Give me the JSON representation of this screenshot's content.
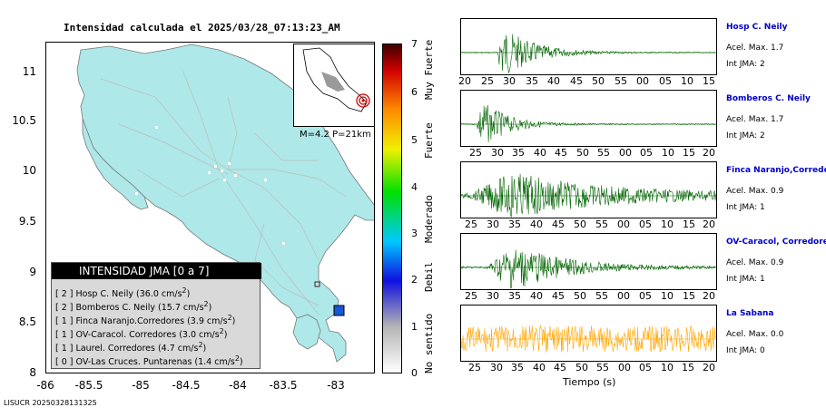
{
  "title": "Intensidad calculada el 2025/03/28_07:13:23_AM",
  "map": {
    "y_ticks": [
      "11",
      "10.5",
      "10",
      "9.5",
      "9",
      "8.5",
      "8"
    ],
    "x_ticks": [
      "-86",
      "-85.5",
      "-85",
      "-84.5",
      "-84",
      "-83.5",
      "-83"
    ],
    "land_color": "#aee8e8",
    "station_marker_color": "#1a55d8",
    "inset_label": "M=4.2 P=21km"
  },
  "legend": {
    "title": "INTENSIDAD JMA [0 a 7]",
    "rows": [
      {
        "level": "[ 2 ]",
        "text": "Hosp C. Neily (36.0 cm/s",
        "sup": "2",
        "close": ")"
      },
      {
        "level": "[ 2 ]",
        "text": "Bomberos C. Neily (15.7 cm/s",
        "sup": "2",
        "close": ")"
      },
      {
        "level": "[ 1 ]",
        "text": "Finca Naranjo.Corredores (3.9 cm/s",
        "sup": "2",
        "close": ")"
      },
      {
        "level": "[ 1 ]",
        "text": "OV-Caracol. Corredores (3.0 cm/s",
        "sup": "2",
        "close": ")"
      },
      {
        "level": "[ 1 ]",
        "text": "Laurel. Corredores (4.7 cm/s",
        "sup": "2",
        "close": ")"
      },
      {
        "level": "[ 0 ]",
        "text": "OV-Las Cruces. Puntarenas (1.4 cm/s",
        "sup": "2",
        "close": ")"
      }
    ]
  },
  "colorbar": {
    "numbers": [
      "7",
      "6",
      "5",
      "4",
      "3",
      "2",
      "1",
      "0"
    ],
    "words": [
      "Muy Fuerte",
      "Fuerte",
      "Moderado",
      "Debil",
      "No sentido"
    ]
  },
  "traces": [
    {
      "name": "Hosp C. Neily",
      "acel": "Acel. Max. 1.7",
      "int": "Int JMA: 2",
      "color": "#006400",
      "ticks": [
        "20",
        "25",
        "30",
        "35",
        "40",
        "45",
        "50",
        "55",
        "00",
        "05",
        "10",
        "15"
      ]
    },
    {
      "name": "Bomberos C. Neily",
      "acel": "Acel. Max. 1.7",
      "int": "Int JMA: 2",
      "color": "#006400",
      "ticks": [
        "25",
        "30",
        "35",
        "40",
        "45",
        "50",
        "55",
        "00",
        "05",
        "10",
        "15",
        "20"
      ]
    },
    {
      "name": "Finca Naranjo,Corredores",
      "acel": "Acel. Max. 0.9",
      "int": "Int JMA: 1",
      "color": "#006400",
      "ticks": [
        "25",
        "30",
        "35",
        "40",
        "45",
        "50",
        "55",
        "00",
        "05",
        "10",
        "15",
        "20"
      ]
    },
    {
      "name": "OV-Caracol, Corredores",
      "acel": "Acel. Max. 0.9",
      "int": "Int JMA: 1",
      "color": "#006400",
      "ticks": [
        "25",
        "30",
        "35",
        "40",
        "45",
        "50",
        "55",
        "00",
        "05",
        "10",
        "15",
        "20"
      ]
    },
    {
      "name": "La Sabana",
      "acel": "Acel. Max. 0.0",
      "int": "Int JMA: 0",
      "color": "#ffa500",
      "ticks": [
        "25",
        "30",
        "35",
        "40",
        "45",
        "50",
        "55",
        "00",
        "05",
        "10",
        "15",
        "20"
      ]
    }
  ],
  "xaxis_title": "Tiempo (s)",
  "footer": "LISUCR 20250328131325"
}
